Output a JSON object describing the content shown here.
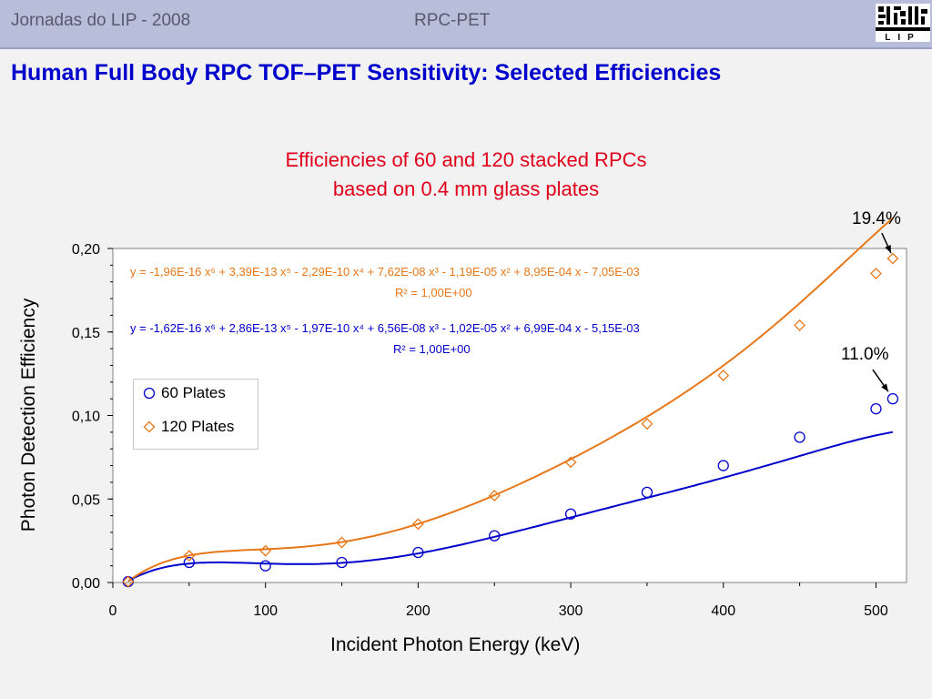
{
  "header": {
    "left_text": "Jornadas do LIP - 2008",
    "center_text": "RPC-PET",
    "logo_text": "LIP"
  },
  "slide_title": "Human Full Body RPC TOF–PET Sensitivity: Selected Efficiencies",
  "chart_title_line1": "Efficiencies of 60 and 120 stacked RPCs",
  "chart_title_line2": "based on 0.4 mm glass plates",
  "equations": {
    "orange_fit": "y = -1,96E-16 x⁶ + 3,39E-13 x⁵ - 2,29E-10 x⁴ + 7,62E-08 x³ - 1,19E-05 x² + 8,95E-04 x - 7,05E-03",
    "orange_r2": "R² = 1,00E+00",
    "blue_fit": "y = -1,62E-16 x⁶ + 2,86E-13 x⁵ - 1,97E-10 x⁴ + 6,56E-08 x³ - 1,02E-05 x² + 6,99E-04 x - 5,15E-03",
    "blue_r2": "R² = 1,00E+00"
  },
  "annotations": {
    "orange_end": "19.4%",
    "blue_end": "11.0%"
  },
  "chart_data": {
    "type": "scatter",
    "title": "Efficiencies of 60 and 120 stacked RPCs based on 0.4 mm glass plates",
    "xlabel": "Incident Photon Energy (keV)",
    "ylabel": "Photon Detection Efficiency",
    "xlim": [
      0,
      520
    ],
    "ylim": [
      0,
      0.2
    ],
    "x_ticks": [
      "0",
      "100",
      "200",
      "300",
      "400",
      "500"
    ],
    "y_ticks": [
      "0,00",
      "0,05",
      "0,10",
      "0,15",
      "0,20"
    ],
    "grid": false,
    "legend_position": "upper-left",
    "colors": {
      "series_60": "#0000cc",
      "series_120": "#e87718"
    },
    "series": [
      {
        "name": "60 Plates",
        "marker": "circle",
        "x": [
          10,
          50,
          100,
          150,
          200,
          250,
          300,
          350,
          400,
          450,
          500,
          511
        ],
        "y": [
          0.0005,
          0.012,
          0.01,
          0.012,
          0.018,
          0.028,
          0.041,
          0.054,
          0.07,
          0.087,
          0.104,
          0.11
        ]
      },
      {
        "name": "120 Plates",
        "marker": "diamond",
        "x": [
          10,
          50,
          100,
          150,
          200,
          250,
          300,
          350,
          400,
          450,
          500,
          511
        ],
        "y": [
          0.0005,
          0.016,
          0.019,
          0.024,
          0.035,
          0.052,
          0.072,
          0.095,
          0.124,
          0.154,
          0.185,
          0.194
        ]
      }
    ],
    "fit_coefficients": {
      "60 Plates": [
        -0.00515,
        0.000699,
        -1.02e-05,
        6.56e-08,
        -1.97e-10,
        2.86e-13,
        -1.62e-16
      ],
      "120 Plates": [
        -0.00705,
        0.000895,
        -1.19e-05,
        7.62e-08,
        -2.29e-10,
        3.39e-13,
        -1.96e-16
      ]
    }
  }
}
